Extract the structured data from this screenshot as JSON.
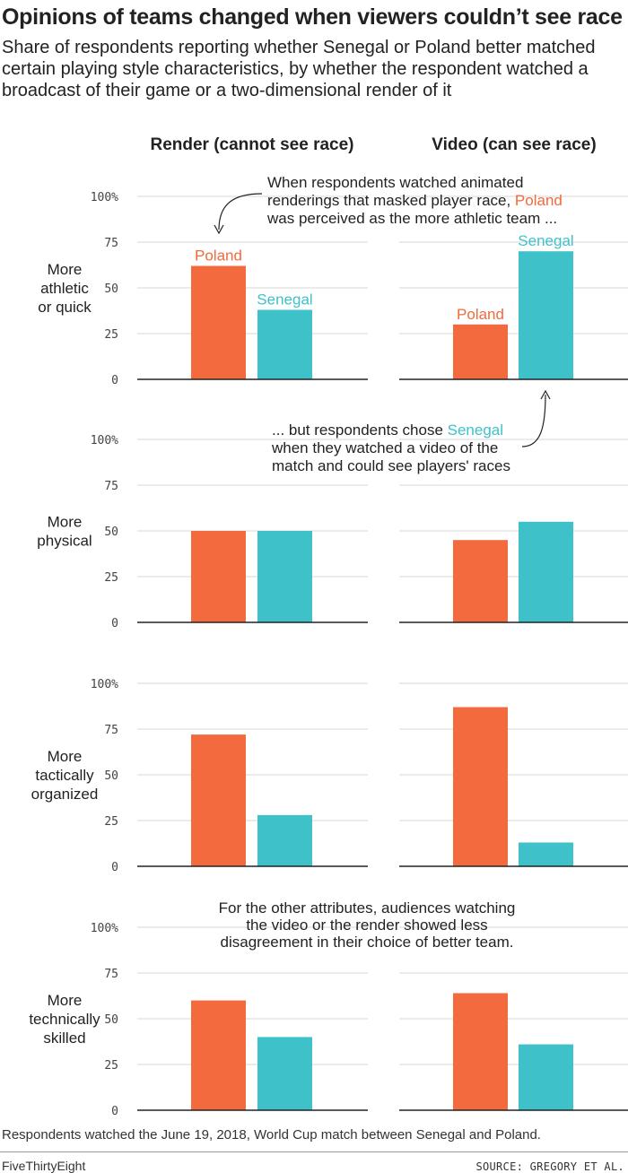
{
  "header": {
    "title": "Opinions of teams changed when viewers couldn’t see race",
    "subtitle": "Share of respondents reporting whether Senegal or Poland better matched certain playing style characteristics, by whether the respondent watched a broadcast of their game or a two-dimensional render of it"
  },
  "colors": {
    "poland": "#f26a3d",
    "senegal": "#3fc1c9",
    "axis": "#222222",
    "grid": "#d7d7d7"
  },
  "chart_data": {
    "type": "bar",
    "columns": [
      "Render (cannot see race)",
      "Video (can see race)"
    ],
    "series_names": [
      "Poland",
      "Senegal"
    ],
    "rows": [
      {
        "label": [
          "More",
          "athletic",
          "or quick"
        ],
        "render": {
          "poland": 62,
          "senegal": 38
        },
        "video": {
          "poland": 30,
          "senegal": 70
        }
      },
      {
        "label": [
          "More",
          "physical"
        ],
        "render": {
          "poland": 50,
          "senegal": 50
        },
        "video": {
          "poland": 45,
          "senegal": 55
        }
      },
      {
        "label": [
          "More",
          "tactically",
          "organized"
        ],
        "render": {
          "poland": 72,
          "senegal": 28
        },
        "video": {
          "poland": 87,
          "senegal": 13
        }
      },
      {
        "label": [
          "More",
          "technically",
          "skilled"
        ],
        "render": {
          "poland": 60,
          "senegal": 40
        },
        "video": {
          "poland": 64,
          "senegal": 36
        }
      }
    ],
    "yticks": [
      "0",
      "25",
      "50",
      "75",
      "100%"
    ],
    "ylim": [
      0,
      100
    ],
    "grid": true
  },
  "annotations": {
    "a1": {
      "lines": [
        [
          "When respondents watched animated",
          null
        ],
        [
          "renderings that masked player race, ",
          "Poland"
        ],
        [
          "was perceived as the more athletic team ...",
          null
        ]
      ]
    },
    "a2": {
      "lines": [
        [
          "... but respondents chose ",
          "Senegal"
        ],
        [
          "when they watched a video of the",
          null
        ],
        [
          "match and could see players' races",
          null
        ]
      ]
    },
    "a3": {
      "lines": [
        "For the other attributes, audiences watching",
        "the video or the render showed less",
        "disagreement in their choice of better team."
      ]
    }
  },
  "footer": {
    "note": "Respondents watched the June 19, 2018, World Cup match between Senegal and Poland.",
    "brand": "FiveThirtyEight",
    "source": "SOURCE: GREGORY ET AL."
  }
}
